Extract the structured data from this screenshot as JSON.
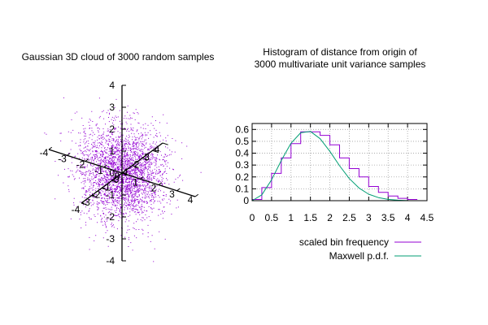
{
  "chart_data": [
    {
      "type": "scatter",
      "title": "Gaussian 3D cloud of 3000 random samples",
      "projection": "3d",
      "samples": 3000,
      "distribution": "standard normal, unit variance in x, y, z",
      "axis_range": [
        -4,
        4
      ],
      "x_ticks": [
        "-4",
        "-3",
        "-2",
        "-1",
        "0",
        "1",
        "2",
        "3",
        "4"
      ],
      "y_ticks": [
        "-4",
        "-3",
        "-2",
        "-1",
        "0",
        "1",
        "2",
        "3",
        "4"
      ],
      "z_ticks": [
        "-4",
        "-3",
        "-2",
        "-1",
        "0",
        "1",
        "2",
        "3",
        "4"
      ],
      "point_color": "#9400d3"
    },
    {
      "type": "line",
      "title_lines": [
        "Histogram of distance from origin of",
        "3000 multivariate unit variance samples"
      ],
      "xlim": [
        0,
        4.5
      ],
      "ylim": [
        0,
        0.65
      ],
      "x_ticks": [
        "0",
        "0.5",
        "1",
        "1.5",
        "2",
        "2.5",
        "3",
        "3.5",
        "4",
        "4.5"
      ],
      "y_ticks": [
        "0",
        "0.1",
        "0.2",
        "0.3",
        "0.4",
        "0.5",
        "0.6"
      ],
      "grid": true,
      "legend_position": "below right",
      "series": [
        {
          "name": "scaled bin frequency",
          "style": "steps",
          "color": "#9400d3",
          "bin_width": 0.25,
          "bin_starts": [
            0,
            0.25,
            0.5,
            0.75,
            1.0,
            1.25,
            1.5,
            1.75,
            2.0,
            2.25,
            2.5,
            2.75,
            3.0,
            3.25,
            3.5,
            3.75,
            4.0
          ],
          "values": [
            0.01,
            0.11,
            0.23,
            0.36,
            0.48,
            0.58,
            0.58,
            0.55,
            0.47,
            0.36,
            0.27,
            0.2,
            0.12,
            0.07,
            0.04,
            0.02,
            0.01
          ]
        },
        {
          "name": "Maxwell p.d.f.",
          "style": "line",
          "color": "#009e73",
          "x": [
            0,
            0.25,
            0.5,
            0.75,
            1.0,
            1.25,
            1.5,
            1.75,
            2.0,
            2.25,
            2.5,
            2.75,
            3.0,
            3.25,
            3.5,
            3.75,
            4.0
          ],
          "values": [
            0,
            0.049,
            0.176,
            0.338,
            0.484,
            0.572,
            0.583,
            0.522,
            0.415,
            0.294,
            0.187,
            0.107,
            0.055,
            0.026,
            0.011,
            0.004,
            0.001
          ]
        }
      ]
    }
  ]
}
